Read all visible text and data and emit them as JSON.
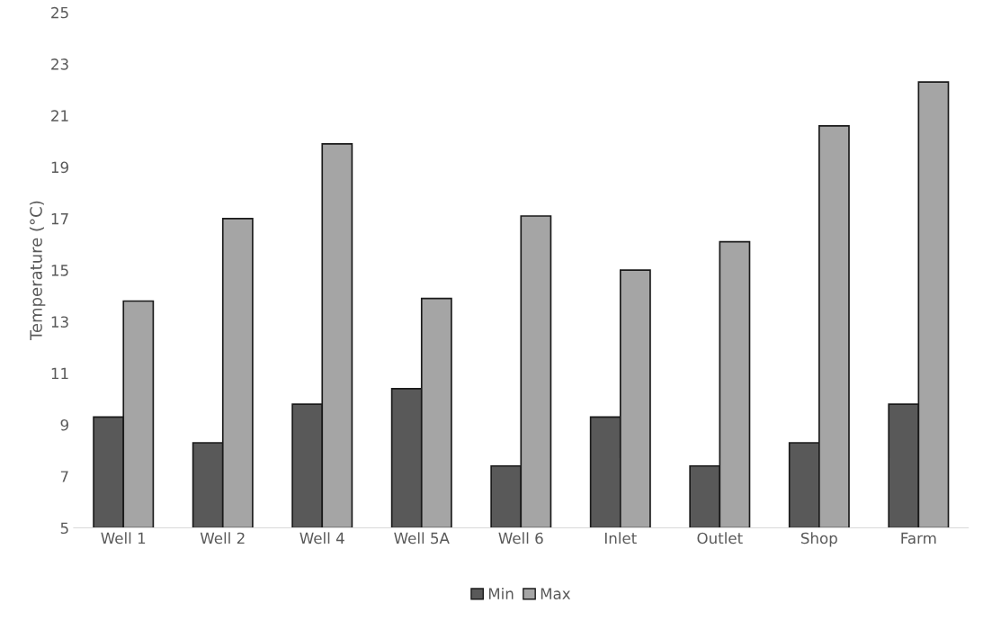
{
  "chart_data": {
    "type": "bar",
    "ylabel": "Temperature (°C)",
    "categories": [
      "Well 1",
      "Well 2",
      "Well 4",
      "Well 5A",
      "Well 6",
      "Inlet",
      "Outlet",
      "Shop",
      "Farm"
    ],
    "series": [
      {
        "name": "Min",
        "color": "#595959",
        "values": [
          9.3,
          8.3,
          9.8,
          10.4,
          7.4,
          9.3,
          7.4,
          8.3,
          9.8
        ]
      },
      {
        "name": "Max",
        "color": "#a5a5a5",
        "values": [
          13.8,
          17.0,
          19.9,
          13.9,
          17.1,
          15.0,
          16.1,
          20.6,
          22.3
        ]
      }
    ],
    "ylim": [
      5,
      25
    ],
    "yticks": [
      5,
      7,
      9,
      11,
      13,
      15,
      17,
      19,
      21,
      23,
      25
    ],
    "grid": false,
    "legend": "bottom"
  }
}
